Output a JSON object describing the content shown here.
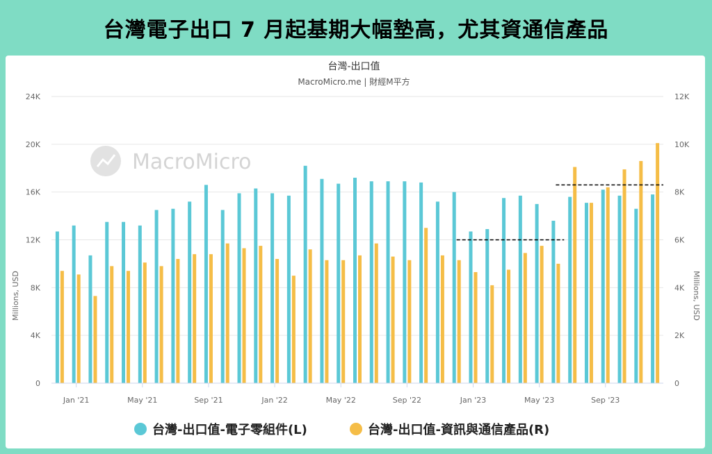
{
  "banner": {
    "title": "台灣電子出口 7 月起基期大幅墊高，尤其資通信產品"
  },
  "chart_data": {
    "type": "bar",
    "title": "台灣-出口值",
    "subtitle": "MacroMicro.me | 財經M平方",
    "watermark": "MacroMicro",
    "ylabel_left": "Millions, USD",
    "ylabel_right": "Millions, USD",
    "ylim_left": [
      0,
      24000
    ],
    "ylim_right": [
      0,
      12000
    ],
    "left_ticks": [
      "0",
      "4K",
      "8K",
      "12K",
      "16K",
      "20K",
      "24K"
    ],
    "right_ticks": [
      "0",
      "2K",
      "4K",
      "6K",
      "8K",
      "10K",
      "12K"
    ],
    "x_tick_labels": [
      "Jan '21",
      "May '21",
      "Sep '21",
      "Jan '22",
      "May '22",
      "Sep '22",
      "Jan '23",
      "May '23",
      "Sep '23"
    ],
    "x_tick_month_index": [
      0,
      4,
      8,
      12,
      16,
      20,
      24,
      28,
      32
    ],
    "months": [
      "2020-12",
      "2021-01",
      "2021-02",
      "2021-03",
      "2021-04",
      "2021-05",
      "2021-06",
      "2021-07",
      "2021-08",
      "2021-09",
      "2021-10",
      "2021-11",
      "2021-12",
      "2022-01",
      "2022-02",
      "2022-03",
      "2022-04",
      "2022-05",
      "2022-06",
      "2022-07",
      "2022-08",
      "2022-09",
      "2022-10",
      "2022-11",
      "2022-12",
      "2023-01",
      "2023-02",
      "2023-03",
      "2023-04",
      "2023-05",
      "2023-06",
      "2023-07",
      "2023-08",
      "2023-09",
      "2023-10",
      "2023-11",
      "2023-12"
    ],
    "series": [
      {
        "name": "台灣-出口值-電子零組件(L)",
        "axis": "left",
        "color": "#5bc8d6",
        "values": [
          12700,
          13200,
          10700,
          13500,
          13500,
          13200,
          14500,
          14600,
          15200,
          16600,
          14500,
          15900,
          16300,
          15900,
          15700,
          18200,
          17100,
          16700,
          17200,
          16900,
          16900,
          16900,
          16800,
          15200,
          16000,
          12700,
          12900,
          15500,
          15700,
          15000,
          13600,
          15600,
          15100,
          16200,
          15700,
          14600,
          15800
        ]
      },
      {
        "name": "台灣-出口值-資訊與通信產品(R)",
        "axis": "right",
        "color": "#f5bd47",
        "values": [
          4700,
          4550,
          3650,
          4900,
          4700,
          5050,
          4900,
          5200,
          5400,
          5400,
          5850,
          5650,
          5750,
          5200,
          4500,
          5600,
          5150,
          5150,
          5350,
          5850,
          5300,
          5150,
          6500,
          5350,
          5150,
          4650,
          4100,
          4750,
          5450,
          5750,
          5000,
          9050,
          7550,
          8200,
          8950,
          9300,
          10050
        ]
      }
    ],
    "reference_lines": [
      {
        "axis": "left",
        "value": 12000,
        "from_month": "2022-12",
        "to_month": "2023-06"
      },
      {
        "axis": "left",
        "value": 16600,
        "from_month": "2023-06",
        "to_month": "2023-12"
      }
    ],
    "legend_position": "bottom",
    "grid": true
  }
}
